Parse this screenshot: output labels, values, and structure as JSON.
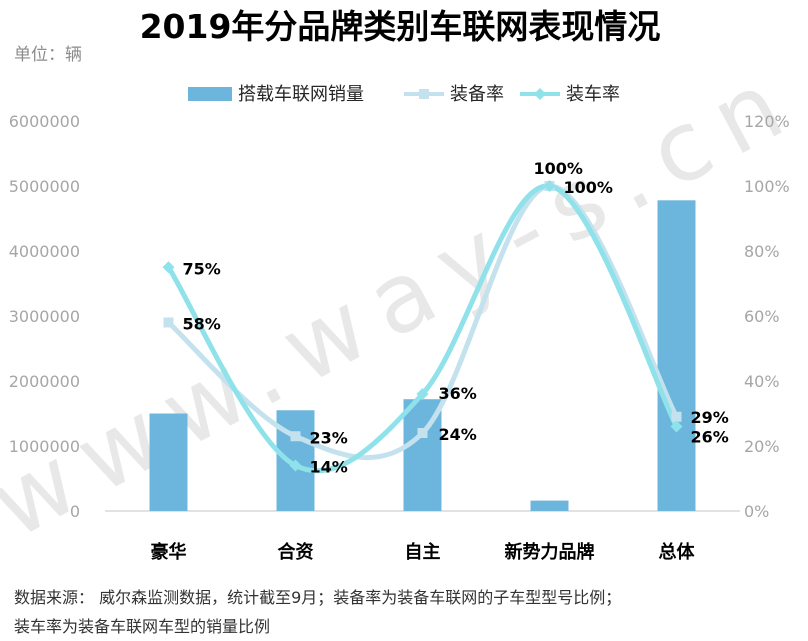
{
  "title": "2019年分品牌类别车联网表现情况",
  "unit_label": "单位：辆",
  "watermark": "www.way-s.cn",
  "footnote": {
    "line1": "数据来源： 威尔森监测数据，统计截至9月；装备率为装备车联网的子车型型号比例；",
    "line2": "装车率为装备车联网车型的销量比例"
  },
  "colors": {
    "bar": "#6cb6dd",
    "equip_rate": "#c4e2ee",
    "install_rate": "#8fe1ea",
    "axis": "#d9d9d9"
  },
  "chart_data": {
    "type": "bar",
    "categories": [
      "豪华",
      "合资",
      "自主",
      "新势力品牌",
      "总体"
    ],
    "series": [
      {
        "name": "搭载车联网销量",
        "type": "bar",
        "axis": "left",
        "values": [
          1500000,
          1550000,
          1720000,
          160000,
          4780000
        ]
      },
      {
        "name": "装备率",
        "type": "line",
        "marker": "square",
        "axis": "right",
        "values": [
          58,
          23,
          24,
          100,
          29
        ],
        "labels": [
          "58%",
          "23%",
          "24%",
          "100%",
          "29%"
        ]
      },
      {
        "name": "装车率",
        "type": "line",
        "marker": "diamond",
        "axis": "right",
        "values": [
          75,
          14,
          36,
          100,
          26
        ],
        "labels": [
          "75%",
          "14%",
          "36%",
          "100%",
          "26%"
        ]
      }
    ],
    "y_left": {
      "min": 0,
      "max": 6000000,
      "ticks": [
        "0",
        "1000000",
        "2000000",
        "3000000",
        "4000000",
        "5000000",
        "6000000"
      ]
    },
    "y_right": {
      "min": 0,
      "max": 120,
      "ticks": [
        "0%",
        "20%",
        "40%",
        "60%",
        "80%",
        "100%",
        "120%"
      ]
    },
    "grid": false,
    "legend_position": "top"
  }
}
